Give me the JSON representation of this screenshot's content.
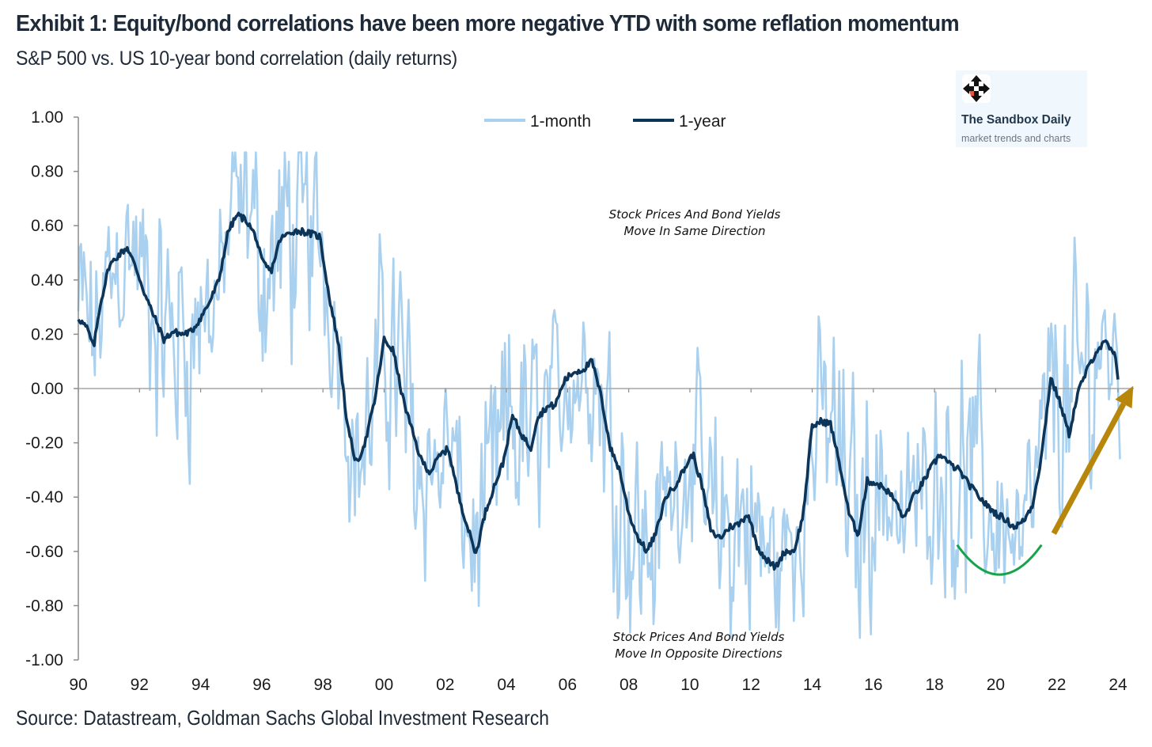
{
  "header": {
    "title": "Exhibit 1: Equity/bond correlations have been more negative YTD with some reflation momentum",
    "subtitle": "S&P 500 vs. US 10-year bond correlation (daily returns)"
  },
  "footer": {
    "source": "Source: Datastream, Goldman Sachs Global Investment Research"
  },
  "watermark": {
    "icon": "move-arrows-icon",
    "name": "The Sandbox Daily",
    "tagline": "market trends and charts"
  },
  "colors": {
    "one_month": "#a9d1ef",
    "one_year": "#0c3559",
    "zero_line": "#a6a6a6",
    "axis": "#8c8c8c",
    "trough_arc": "#17a34a",
    "trend_arrow": "#b8860b"
  },
  "chart_data": {
    "type": "line",
    "title": "Exhibit 1: Equity/bond correlations have been more negative YTD with some reflation momentum",
    "subtitle": "S&P 500 vs. US 10-year bond correlation (daily returns)",
    "xlabel": "",
    "ylabel": "",
    "xlim": [
      1990,
      2024
    ],
    "ylim": [
      -1.0,
      1.0
    ],
    "x_ticks": [
      1990,
      1992,
      1994,
      1996,
      1998,
      2000,
      2002,
      2004,
      2006,
      2008,
      2010,
      2012,
      2014,
      2016,
      2018,
      2020,
      2022,
      2024
    ],
    "x_tick_labels": [
      "90",
      "92",
      "94",
      "96",
      "98",
      "00",
      "02",
      "04",
      "06",
      "08",
      "10",
      "12",
      "14",
      "16",
      "18",
      "20",
      "22",
      "24"
    ],
    "y_ticks": [
      1.0,
      0.8,
      0.6,
      0.4,
      0.2,
      0.0,
      -0.2,
      -0.4,
      -0.6,
      -0.8,
      -1.0
    ],
    "y_tick_labels": [
      "1.00",
      "0.80",
      "0.60",
      "0.40",
      "0.20",
      "0.00",
      "-0.20",
      "-0.40",
      "-0.60",
      "-0.80",
      "-1.00"
    ],
    "grid": false,
    "zero_line": true,
    "legend": {
      "position": "top-center",
      "entries": [
        "1-month",
        "1-year"
      ]
    },
    "series": [
      {
        "name": "1-year",
        "x": [
          1990.0,
          1990.3,
          1990.5,
          1990.7,
          1991.0,
          1991.3,
          1991.6,
          1991.9,
          1992.2,
          1992.5,
          1992.8,
          1993.1,
          1993.4,
          1993.7,
          1994.0,
          1994.3,
          1994.6,
          1994.9,
          1995.2,
          1995.5,
          1995.8,
          1996.0,
          1996.3,
          1996.6,
          1997.0,
          1997.3,
          1997.6,
          1997.9,
          1998.2,
          1998.5,
          1998.8,
          1999.1,
          1999.4,
          1999.7,
          2000.0,
          2000.3,
          2000.6,
          2000.9,
          2001.2,
          2001.5,
          2001.8,
          2002.1,
          2002.4,
          2002.7,
          2003.0,
          2003.3,
          2003.6,
          2003.9,
          2004.2,
          2004.5,
          2004.8,
          2005.0,
          2005.3,
          2005.6,
          2005.9,
          2006.2,
          2006.5,
          2006.8,
          2007.1,
          2007.4,
          2007.7,
          2008.0,
          2008.3,
          2008.6,
          2008.9,
          2009.2,
          2009.5,
          2009.8,
          2010.1,
          2010.4,
          2010.7,
          2011.0,
          2011.3,
          2011.6,
          2011.9,
          2012.2,
          2012.5,
          2012.8,
          2013.1,
          2013.4,
          2013.7,
          2014.0,
          2014.3,
          2014.6,
          2014.9,
          2015.2,
          2015.5,
          2015.8,
          2016.1,
          2016.4,
          2016.7,
          2017.0,
          2017.3,
          2017.6,
          2017.9,
          2018.2,
          2018.5,
          2018.8,
          2019.1,
          2019.4,
          2019.7,
          2020.0,
          2020.3,
          2020.6,
          2020.9,
          2021.2,
          2021.5,
          2021.8,
          2022.1,
          2022.4,
          2022.7,
          2023.0,
          2023.3,
          2023.6,
          2023.9,
          2024.0
        ],
        "values": [
          0.26,
          0.22,
          0.15,
          0.3,
          0.45,
          0.49,
          0.52,
          0.44,
          0.34,
          0.26,
          0.18,
          0.21,
          0.2,
          0.21,
          0.26,
          0.32,
          0.4,
          0.58,
          0.64,
          0.62,
          0.56,
          0.47,
          0.43,
          0.55,
          0.58,
          0.58,
          0.57,
          0.56,
          0.34,
          0.17,
          -0.14,
          -0.28,
          -0.19,
          -0.04,
          0.18,
          0.14,
          -0.03,
          -0.15,
          -0.26,
          -0.31,
          -0.25,
          -0.22,
          -0.38,
          -0.5,
          -0.61,
          -0.46,
          -0.36,
          -0.27,
          -0.1,
          -0.17,
          -0.22,
          -0.11,
          -0.07,
          -0.06,
          0.03,
          0.06,
          0.07,
          0.1,
          -0.03,
          -0.22,
          -0.3,
          -0.46,
          -0.55,
          -0.6,
          -0.53,
          -0.4,
          -0.36,
          -0.3,
          -0.24,
          -0.36,
          -0.53,
          -0.55,
          -0.51,
          -0.5,
          -0.46,
          -0.58,
          -0.63,
          -0.66,
          -0.6,
          -0.6,
          -0.47,
          -0.14,
          -0.12,
          -0.13,
          -0.28,
          -0.46,
          -0.54,
          -0.34,
          -0.35,
          -0.37,
          -0.41,
          -0.48,
          -0.4,
          -0.35,
          -0.29,
          -0.24,
          -0.28,
          -0.3,
          -0.35,
          -0.39,
          -0.43,
          -0.46,
          -0.48,
          -0.51,
          -0.49,
          -0.43,
          -0.25,
          0.04,
          -0.05,
          -0.17,
          -0.01,
          0.07,
          0.14,
          0.17,
          0.12,
          0.03
        ]
      },
      {
        "name": "1-month",
        "description": "Highly volatile series oscillating around the 1-year line; peaks near 0.87 (1995), 0.84 (1991), 0.79 (2023); troughs near -0.91 (2002), -0.88 (2020), -0.85 (2011-12)",
        "max_value": 0.87,
        "min_value": -0.92
      }
    ],
    "annotations": [
      {
        "text_line1": "Stock Prices And Bond Yields",
        "text_line2": "Move In Same Direction",
        "position": "upper-middle"
      },
      {
        "text_line1": "Stock Prices And Bond Yields",
        "text_line2": "Move In Opposite Directions",
        "position": "lower-middle"
      },
      {
        "shape": "arc",
        "color": "green",
        "x_range": [
          2019,
          2021.5
        ],
        "y": -0.62,
        "meaning": "trough"
      },
      {
        "shape": "arrow",
        "color": "gold",
        "from": [
          2021.9,
          -0.54
        ],
        "to": [
          2024.5,
          0.01
        ],
        "meaning": "upward reflation momentum"
      }
    ]
  }
}
